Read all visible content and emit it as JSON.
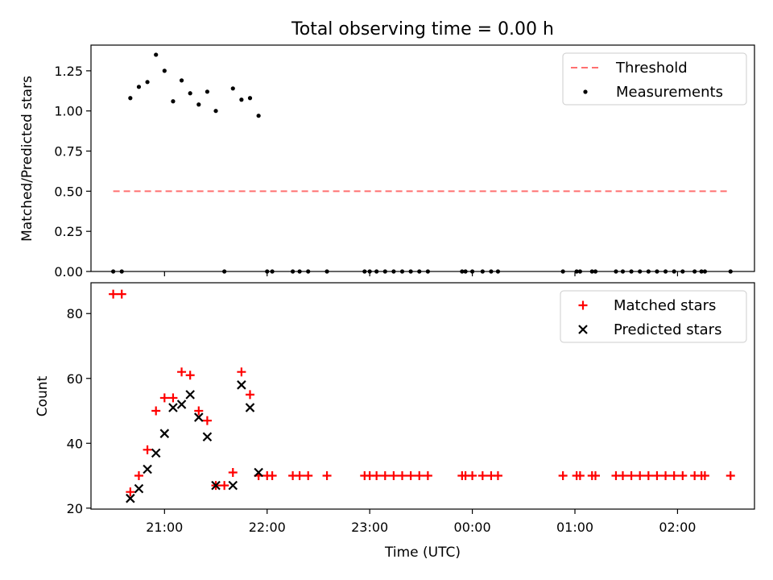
{
  "chart_data": [
    {
      "type": "scatter",
      "title": "Total observing time = 0.00 h",
      "xlabel": "",
      "ylabel": "Matched/Predicted stars",
      "xlim": [
        "20:17",
        "02:45"
      ],
      "ylim": [
        0,
        1.41
      ],
      "yticks": [
        "0.00",
        "0.25",
        "0.50",
        "0.75",
        "1.00",
        "1.25"
      ],
      "xticks_show_labels": false,
      "grid": false,
      "legend": {
        "position": "top-right",
        "entries": [
          "Threshold",
          "Measurements"
        ]
      },
      "series": [
        {
          "name": "Threshold",
          "kind": "dashed-line",
          "color": "#ff7070",
          "points": [
            [
              "20:30",
              0.5
            ],
            [
              "02:31",
              0.5
            ]
          ]
        },
        {
          "name": "Measurements",
          "kind": "dots",
          "color": "#000000",
          "points": [
            [
              "20:30",
              0.0
            ],
            [
              "20:35",
              0.0
            ],
            [
              "20:40",
              1.08
            ],
            [
              "20:45",
              1.15
            ],
            [
              "20:50",
              1.18
            ],
            [
              "20:55",
              1.35
            ],
            [
              "21:00",
              1.25
            ],
            [
              "21:05",
              1.06
            ],
            [
              "21:10",
              1.19
            ],
            [
              "21:15",
              1.11
            ],
            [
              "21:20",
              1.04
            ],
            [
              "21:25",
              1.12
            ],
            [
              "21:30",
              1.0
            ],
            [
              "21:35",
              0.0
            ],
            [
              "21:40",
              1.14
            ],
            [
              "21:45",
              1.07
            ],
            [
              "21:50",
              1.08
            ],
            [
              "21:55",
              0.97
            ],
            [
              "22:00",
              0.0
            ],
            [
              "22:03",
              0.0
            ],
            [
              "22:15",
              0.0
            ],
            [
              "22:19",
              0.0
            ],
            [
              "22:24",
              0.0
            ],
            [
              "22:35",
              0.0
            ],
            [
              "22:57",
              0.0
            ],
            [
              "23:00",
              0.0
            ],
            [
              "23:04",
              0.0
            ],
            [
              "23:09",
              0.0
            ],
            [
              "23:14",
              0.0
            ],
            [
              "23:19",
              0.0
            ],
            [
              "23:24",
              0.0
            ],
            [
              "23:29",
              0.0
            ],
            [
              "23:34",
              0.0
            ],
            [
              "23:54",
              0.0
            ],
            [
              "23:56",
              0.0
            ],
            [
              "00:00",
              0.0
            ],
            [
              "00:06",
              0.0
            ],
            [
              "00:11",
              0.0
            ],
            [
              "00:15",
              0.0
            ],
            [
              "00:53",
              0.0
            ],
            [
              "01:01",
              0.0
            ],
            [
              "01:03",
              0.0
            ],
            [
              "01:10",
              0.0
            ],
            [
              "01:12",
              0.0
            ],
            [
              "01:24",
              0.0
            ],
            [
              "01:28",
              0.0
            ],
            [
              "01:33",
              0.0
            ],
            [
              "01:38",
              0.0
            ],
            [
              "01:43",
              0.0
            ],
            [
              "01:48",
              0.0
            ],
            [
              "01:53",
              0.0
            ],
            [
              "01:58",
              0.0
            ],
            [
              "02:03",
              0.0
            ],
            [
              "02:10",
              0.0
            ],
            [
              "02:14",
              0.0
            ],
            [
              "02:16",
              0.0
            ],
            [
              "02:31",
              0.0
            ]
          ]
        }
      ]
    },
    {
      "type": "scatter",
      "title": "",
      "xlabel": "Time (UTC)",
      "ylabel": "Count",
      "xlim": [
        "20:17",
        "02:45"
      ],
      "ylim": [
        19.7,
        89.5
      ],
      "yticks": [
        "20",
        "40",
        "60",
        "80"
      ],
      "xticks": [
        "21:00",
        "22:00",
        "23:00",
        "00:00",
        "01:00",
        "02:00"
      ],
      "grid": false,
      "legend": {
        "position": "top-right",
        "entries": [
          "Matched stars",
          "Predicted stars"
        ]
      },
      "series": [
        {
          "name": "Matched stars",
          "marker": "plus",
          "color": "#ff0000",
          "points": [
            [
              "20:30",
              86
            ],
            [
              "20:35",
              86
            ],
            [
              "20:40",
              25
            ],
            [
              "20:45",
              30
            ],
            [
              "20:50",
              38
            ],
            [
              "20:55",
              50
            ],
            [
              "21:00",
              54
            ],
            [
              "21:05",
              54
            ],
            [
              "21:10",
              62
            ],
            [
              "21:15",
              61
            ],
            [
              "21:20",
              50
            ],
            [
              "21:25",
              47
            ],
            [
              "21:30",
              27
            ],
            [
              "21:35",
              27
            ],
            [
              "21:40",
              31
            ],
            [
              "21:45",
              62
            ],
            [
              "21:50",
              55
            ],
            [
              "21:55",
              30
            ],
            [
              "22:00",
              30
            ],
            [
              "22:03",
              30
            ],
            [
              "22:15",
              30
            ],
            [
              "22:19",
              30
            ],
            [
              "22:24",
              30
            ],
            [
              "22:35",
              30
            ],
            [
              "22:57",
              30
            ],
            [
              "23:00",
              30
            ],
            [
              "23:04",
              30
            ],
            [
              "23:09",
              30
            ],
            [
              "23:14",
              30
            ],
            [
              "23:19",
              30
            ],
            [
              "23:24",
              30
            ],
            [
              "23:29",
              30
            ],
            [
              "23:34",
              30
            ],
            [
              "23:54",
              30
            ],
            [
              "23:56",
              30
            ],
            [
              "00:00",
              30
            ],
            [
              "00:06",
              30
            ],
            [
              "00:11",
              30
            ],
            [
              "00:15",
              30
            ],
            [
              "00:53",
              30
            ],
            [
              "01:01",
              30
            ],
            [
              "01:03",
              30
            ],
            [
              "01:10",
              30
            ],
            [
              "01:12",
              30
            ],
            [
              "01:24",
              30
            ],
            [
              "01:28",
              30
            ],
            [
              "01:33",
              30
            ],
            [
              "01:38",
              30
            ],
            [
              "01:43",
              30
            ],
            [
              "01:48",
              30
            ],
            [
              "01:53",
              30
            ],
            [
              "01:58",
              30
            ],
            [
              "02:03",
              30
            ],
            [
              "02:10",
              30
            ],
            [
              "02:14",
              30
            ],
            [
              "02:16",
              30
            ],
            [
              "02:31",
              30
            ]
          ]
        },
        {
          "name": "Predicted stars",
          "marker": "x",
          "color": "#000000",
          "points": [
            [
              "20:40",
              23
            ],
            [
              "20:45",
              26
            ],
            [
              "20:50",
              32
            ],
            [
              "20:55",
              37
            ],
            [
              "21:00",
              43
            ],
            [
              "21:05",
              51
            ],
            [
              "21:10",
              52
            ],
            [
              "21:15",
              55
            ],
            [
              "21:20",
              48
            ],
            [
              "21:25",
              42
            ],
            [
              "21:30",
              27
            ],
            [
              "21:40",
              27
            ],
            [
              "21:45",
              58
            ],
            [
              "21:50",
              51
            ],
            [
              "21:55",
              31
            ]
          ]
        }
      ]
    }
  ]
}
